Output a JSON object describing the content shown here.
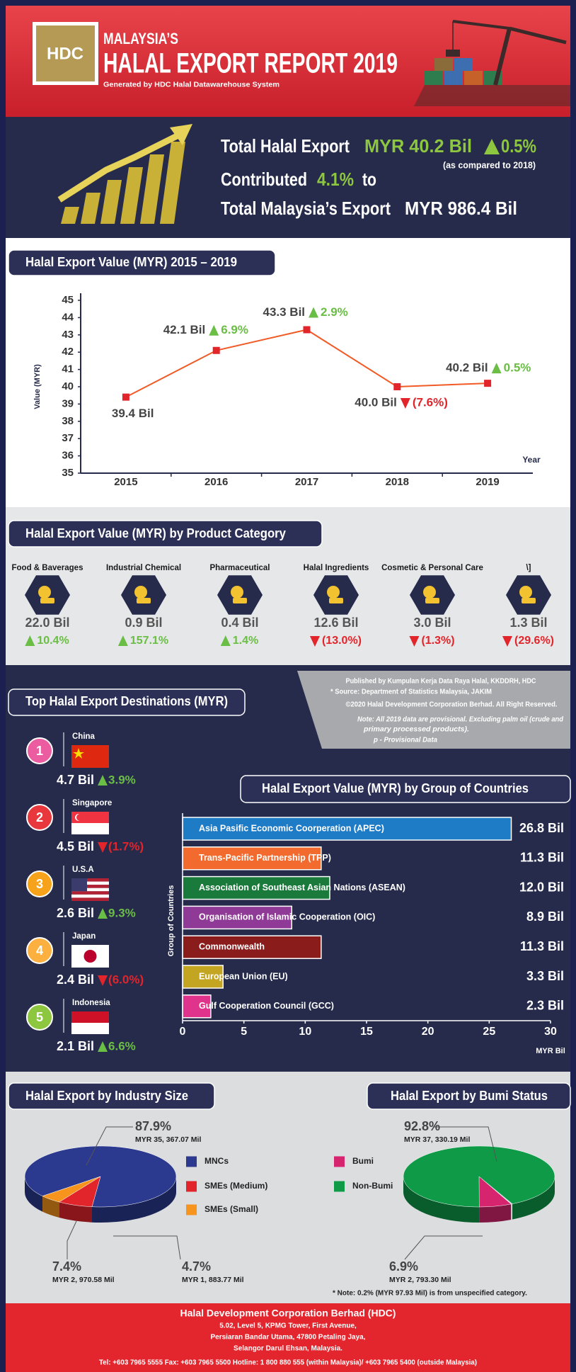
{
  "header": {
    "logo": "HDC",
    "title_line1": "MALAYSIA’S",
    "title_line2": "HALAL EXPORT REPORT 2019",
    "subtitle": "Generated by HDC Halal Datawarehouse System"
  },
  "summary": {
    "total_label": "Total Halal Export",
    "total_value": "MYR 40.2 Bil",
    "total_change": "0.5%",
    "comparison": "(as compared to 2018)",
    "contributed_label": "Contributed",
    "contributed_share": "4.1%",
    "contributed_to": "to",
    "malaysia_label": "Total Malaysia’s Export",
    "malaysia_value": "MYR 986.4 Bil"
  },
  "chart_data": [
    {
      "type": "line",
      "title": "Halal Export Value (MYR) 2015 – 2019",
      "ylabel": "Value (MYR)",
      "xlabel": "Year",
      "categories": [
        "2015",
        "2016",
        "2017",
        "2018",
        "2019"
      ],
      "values": [
        39.4,
        42.1,
        43.3,
        40.0,
        40.2
      ],
      "value_labels": [
        "39.4 Bil",
        "42.1 Bil",
        "43.3 Bil",
        "40.0 Bil",
        "40.2 Bil"
      ],
      "change_labels": [
        null,
        "6.9%",
        "2.9%",
        "(7.6%)",
        "0.5%"
      ],
      "ylim": [
        35,
        45
      ],
      "yticks": [
        35,
        36,
        37,
        38,
        39,
        40,
        41,
        42,
        43,
        44,
        45
      ],
      "line_color": "#f15a24",
      "marker_color": "#e2242b"
    },
    {
      "type": "pictogram",
      "title": "Halal Export Value (MYR) by Product Category",
      "categories": [
        "Food & Baverages",
        "Industrial Chemical",
        "Pharmaceutical",
        "Halal Ingredients",
        "Cosmetic & Personal Care",
        "\\]"
      ],
      "values": [
        22.0,
        0.9,
        0.4,
        12.6,
        3.0,
        1.3
      ],
      "value_labels": [
        "22.0 Bil",
        "0.9 Bil",
        "0.4 Bil",
        "12.6 Bil",
        "3.0 Bil",
        "1.3 Bil"
      ],
      "change_labels": [
        "10.4%",
        "157.1%",
        "1.4%",
        "(13.0%)",
        "(1.3%)",
        "(29.6%)"
      ]
    },
    {
      "type": "ranking",
      "title": "Top Halal Export Destinations (MYR)",
      "ranks": [
        1,
        2,
        3,
        4,
        5
      ],
      "categories": [
        "China",
        "Singapore",
        "U.S.A",
        "Japan",
        "Indonesia"
      ],
      "values": [
        4.7,
        4.5,
        2.6,
        2.4,
        2.1
      ],
      "value_labels": [
        "4.7 Bil",
        "4.5 Bil",
        "2.6 Bil",
        "2.4 Bil",
        "2.1 Bil"
      ],
      "change_labels": [
        "3.9%",
        "(1.7%)",
        "9.3%",
        "(6.0%)",
        "6.6%"
      ],
      "rank_colors": [
        "#ec5ca0",
        "#e8383d",
        "#f7a21b",
        "#fbb040",
        "#8dc63f"
      ]
    },
    {
      "type": "bar",
      "orientation": "horizontal",
      "title": "Halal Export Value (MYR) by Group of Countries",
      "ylabel": "Group of Countries",
      "xlabel": "MYR Bil",
      "categories": [
        "Asia Pasific Economic Coorperation (APEC)",
        "Trans-Pacific Partnership (TPP)",
        "Association of Southeast Asian Nations (ASEAN)",
        "Organisation of Islamic Cooperation (OIC)",
        "Commonwealth",
        "European Union (EU)",
        "Gulf Cooperation Council (GCC)"
      ],
      "values": [
        26.8,
        11.3,
        12.0,
        8.9,
        11.3,
        3.3,
        2.3
      ],
      "value_labels": [
        "26.8 Bil",
        "11.3 Bil",
        "12.0 Bil",
        "8.9 Bil",
        "11.3 Bil",
        "3.3 Bil",
        "2.3 Bil"
      ],
      "colors": [
        "#1e7bc6",
        "#f26a2e",
        "#1a7a3c",
        "#8e3a96",
        "#8b1c1c",
        "#c4a521",
        "#e0338c"
      ],
      "xlim": [
        0,
        30
      ],
      "xticks": [
        0,
        5,
        10,
        15,
        20,
        25,
        30
      ]
    },
    {
      "type": "pie",
      "title": "Halal Export by Industry Size",
      "categories": [
        "MNCs",
        "SMEs (Medium)",
        "SMEs (Small)"
      ],
      "values": [
        87.9,
        7.4,
        4.7
      ],
      "value_labels": [
        "87.9%",
        "7.4%",
        "4.7%"
      ],
      "amount_labels": [
        "MYR 35, 367.07 Mil",
        "MYR 2, 970.58 Mil",
        "MYR 1, 883.77 Mil"
      ],
      "colors": [
        "#2b3a8f",
        "#e2242b",
        "#f7941d"
      ]
    },
    {
      "type": "pie",
      "title": "Halal Export by Bumi Status",
      "categories": [
        "Bumi",
        "Non-Bumi"
      ],
      "values": [
        6.9,
        92.8
      ],
      "value_labels": [
        "6.9%",
        "92.8%"
      ],
      "amount_labels": [
        "MYR 2, 793.30 Mil",
        "MYR 37, 330.19 Mil"
      ],
      "colors": [
        "#d6246e",
        "#0f9a48"
      ],
      "note": "* Note: 0.2% (MYR 97.93 Mil) is from unspecified category."
    }
  ],
  "notes": {
    "published": "Published by Kumpulan Kerja Data Raya Halal, KKDDRH, HDC",
    "source": "* Source: Department of Statistics Malaysia, JAKIM",
    "copyright": "©2020 Halal Development Corporation Berhad. All Right Reserved.",
    "note_line1": "Note: All 2019 data are provisional. Excluding palm oil (crude and",
    "note_line2": "primary processed products).",
    "provisional": "p - Provisional  Data"
  },
  "footer": {
    "name": "Halal Development Corporation Berhad (HDC)",
    "address_line1": "5.02, Level 5, KPMG Tower,  First Avenue,",
    "address_line2": "Persiaran Bandar Utama, 47800 Petaling Jaya,",
    "address_line3": "Selangor Darul Ehsan, Malaysia.",
    "contacts": "Tel: +603 7965 5555     Fax: +603 7965 5500     Hotline: 1 800 880 555 (within Malaysia)/ +603 7965 5400  (outside Malaysia)"
  }
}
